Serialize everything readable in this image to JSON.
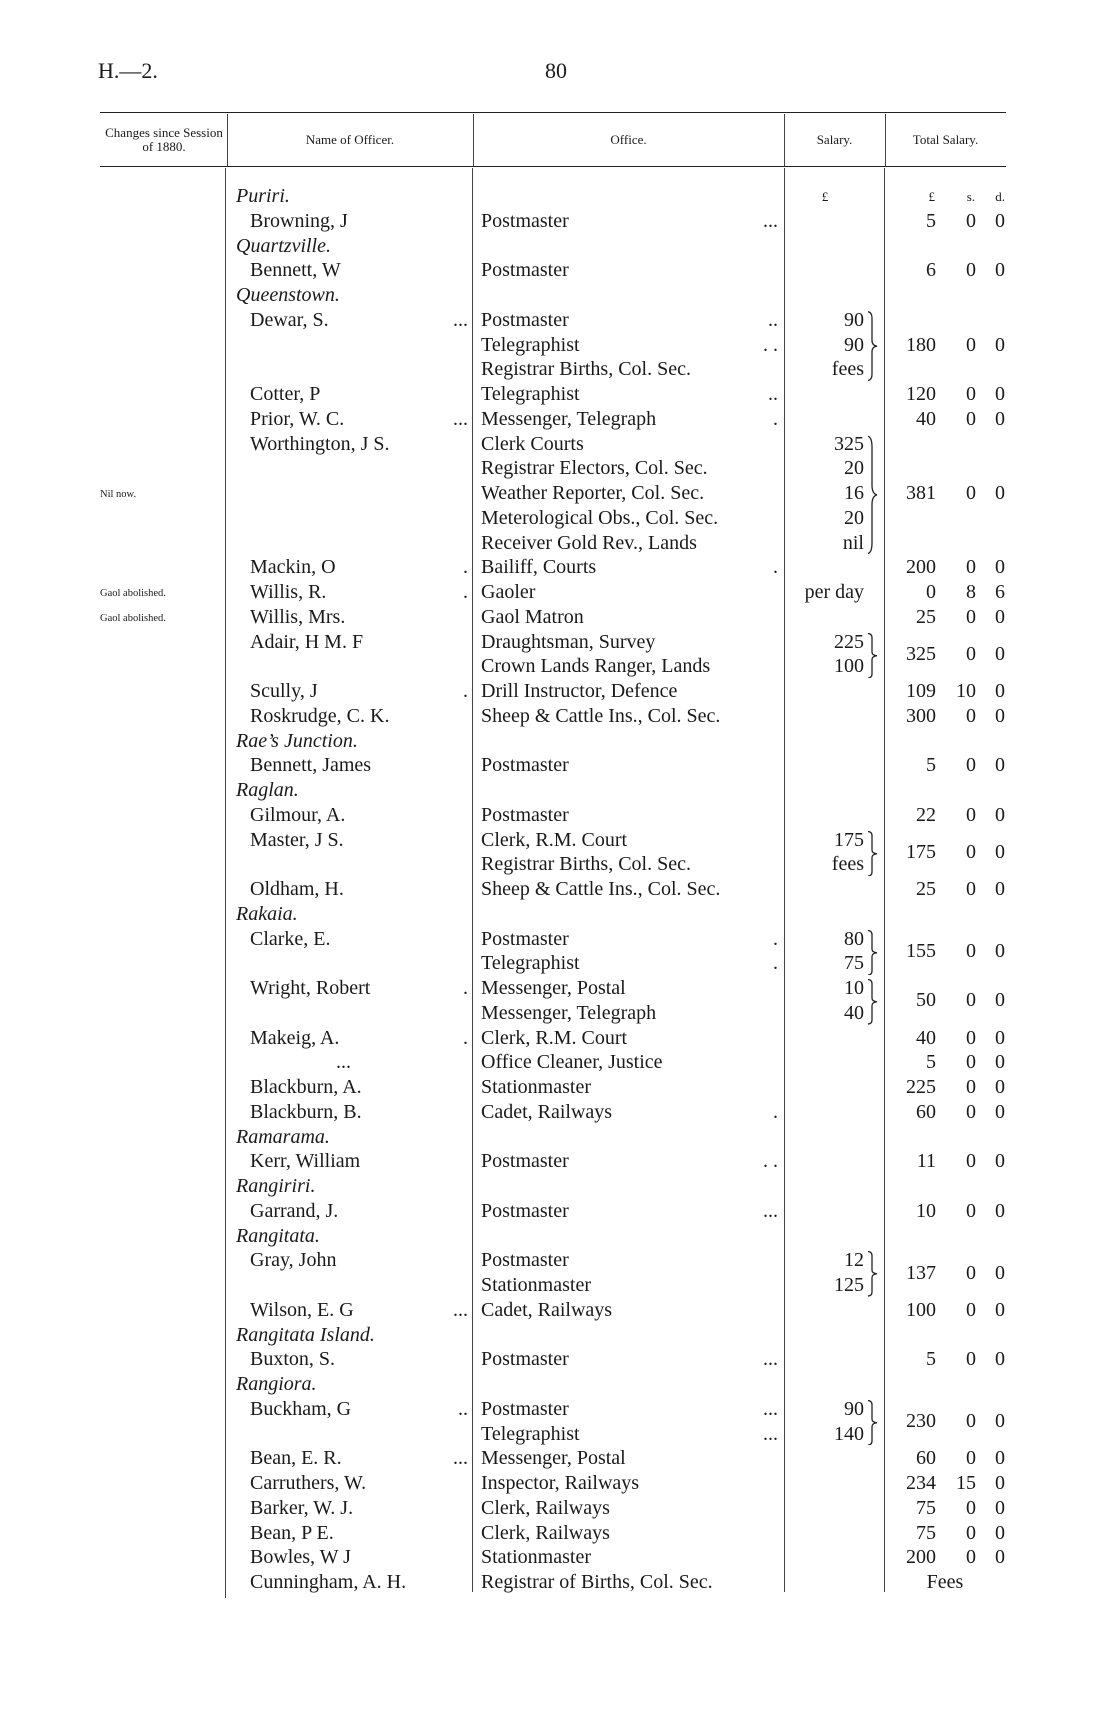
{
  "page": {
    "doc_code": "H.—2.",
    "page_number": "80"
  },
  "header": {
    "changes": "Changes since Session of 1880.",
    "name": "Name of Officer.",
    "office": "Office.",
    "salary": "Salary.",
    "total": "Total Salary."
  },
  "currency_headers": {
    "salary": "£",
    "total_pounds": "£",
    "total_shillings": "s.",
    "total_pence": "d."
  },
  "entries": [
    {
      "place": "Puriri."
    },
    {
      "name": "Browning, J",
      "offices": [
        {
          "office": "Postmaster",
          "dots": "..."
        }
      ],
      "total": [
        "5",
        "0",
        "0"
      ]
    },
    {
      "place": "Quartzville."
    },
    {
      "name": "Bennett, W",
      "offices": [
        {
          "office": "Postmaster"
        }
      ],
      "total": [
        "6",
        "0",
        "0"
      ]
    },
    {
      "place": "Queenstown."
    },
    {
      "name": "Dewar, S.",
      "name_dots": "...",
      "offices": [
        {
          "office": "Postmaster",
          "dots": "..",
          "salary": "90"
        },
        {
          "office": "Telegraphist",
          "dots": ". .",
          "salary": "90"
        },
        {
          "office": "Registrar Births, Col. Sec.",
          "salary": "fees"
        }
      ],
      "total": [
        "180",
        "0",
        "0"
      ]
    },
    {
      "name": "Cotter, P",
      "offices": [
        {
          "office": "Telegraphist",
          "dots": ".."
        }
      ],
      "total": [
        "120",
        "0",
        "0"
      ]
    },
    {
      "name": "Prior, W. C.",
      "name_dots": "...",
      "offices": [
        {
          "office": "Messenger, Telegraph",
          "dots": "."
        }
      ],
      "total": [
        "40",
        "0",
        "0"
      ]
    },
    {
      "name": "Worthington, J  S.",
      "offices": [
        {
          "office": "Clerk Courts",
          "salary": "325"
        },
        {
          "office": "Registrar Electors, Col. Sec.",
          "salary": "20"
        },
        {
          "office": "Weather Reporter, Col. Sec.",
          "salary": "16",
          "note": "Nil now."
        },
        {
          "office": "Meterological Obs., Col. Sec.",
          "salary": "20"
        },
        {
          "office": "Receiver  Gold  Rev., Lands",
          "salary": "nil"
        }
      ],
      "total": [
        "381",
        "0",
        "0"
      ]
    },
    {
      "name": "Mackin, O",
      "name_dots": ".",
      "offices": [
        {
          "office": "Bailiff, Courts",
          "dots": "."
        }
      ],
      "total": [
        "200",
        "0",
        "0"
      ]
    },
    {
      "name": "Willis, R.",
      "name_dots": ".",
      "offices": [
        {
          "office": "Gaoler",
          "salary": "per day",
          "note": "Gaol abolished."
        }
      ],
      "total": [
        "0",
        "8",
        "6"
      ]
    },
    {
      "name": "Willis, Mrs.",
      "offices": [
        {
          "office": "Gaol Matron",
          "note": "Gaol abolished."
        }
      ],
      "total": [
        "25",
        "0",
        "0"
      ]
    },
    {
      "name": "Adair, H  M. F",
      "offices": [
        {
          "office": "Draughtsman, Survey",
          "salary": "225"
        },
        {
          "office": "Crown Lands Ranger, Lands",
          "salary": "100"
        }
      ],
      "total": [
        "325",
        "0",
        "0"
      ]
    },
    {
      "name": "Scully, J",
      "name_dots": ".",
      "offices": [
        {
          "office": "Drill Instructor, Defence"
        }
      ],
      "total": [
        "109",
        "10",
        "0"
      ]
    },
    {
      "name": "Roskrudge, C. K.",
      "offices": [
        {
          "office": "Sheep & Cattle Ins., Col. Sec."
        }
      ],
      "total": [
        "300",
        "0",
        "0"
      ]
    },
    {
      "place": "Rae’s Junction."
    },
    {
      "name": "Bennett, James",
      "offices": [
        {
          "office": "Postmaster"
        }
      ],
      "total": [
        "5",
        "0",
        "0"
      ]
    },
    {
      "place": "Raglan."
    },
    {
      "name": "Gilmour, A.",
      "offices": [
        {
          "office": "Postmaster"
        }
      ],
      "total": [
        "22",
        "0",
        "0"
      ]
    },
    {
      "name": "Master, J  S.",
      "offices": [
        {
          "office": "Clerk, R.M.  Court",
          "salary": "175"
        },
        {
          "office": "Registrar Births, Col. Sec.",
          "salary": "fees"
        }
      ],
      "total": [
        "175",
        "0",
        "0"
      ]
    },
    {
      "name": "Oldham, H.",
      "offices": [
        {
          "office": "Sheep & Cattle Ins., Col. Sec."
        }
      ],
      "total": [
        "25",
        "0",
        "0"
      ]
    },
    {
      "place": "Rakaia."
    },
    {
      "name": "Clarke, E.",
      "offices": [
        {
          "office": "Postmaster",
          "dots": ".",
          "salary": "80"
        },
        {
          "office": "Telegraphist",
          "dots": ".",
          "salary": "75"
        }
      ],
      "total": [
        "155",
        "0",
        "0"
      ]
    },
    {
      "name": "Wright, Robert",
      "name_dots": ".",
      "offices": [
        {
          "office": "Messenger, Postal",
          "salary": "10"
        },
        {
          "office": "Messenger, Telegraph",
          "salary": "40"
        }
      ],
      "total": [
        "50",
        "0",
        "0"
      ]
    },
    {
      "name": "Makeig, A.",
      "name_dots": ".",
      "offices": [
        {
          "office": "Clerk, R.M. Court"
        }
      ],
      "total": [
        "40",
        "0",
        "0"
      ]
    },
    {
      "name": "...",
      "offices": [
        {
          "office": "Office Cleaner, Justice"
        }
      ],
      "total": [
        "5",
        "0",
        "0"
      ]
    },
    {
      "name": "Blackburn, A.",
      "offices": [
        {
          "office": "Stationmaster"
        }
      ],
      "total": [
        "225",
        "0",
        "0"
      ]
    },
    {
      "name": "Blackburn, B.",
      "offices": [
        {
          "office": "Cadet, Railways",
          "dots": "."
        }
      ],
      "total": [
        "60",
        "0",
        "0"
      ]
    },
    {
      "place": "Ramarama."
    },
    {
      "name": "Kerr, William",
      "offices": [
        {
          "office": "Postmaster",
          "dots": ". ."
        }
      ],
      "total": [
        "11",
        "0",
        "0"
      ]
    },
    {
      "place": "Rangiriri."
    },
    {
      "name": "Garrand, J.",
      "offices": [
        {
          "office": "Postmaster",
          "dots": "..."
        }
      ],
      "total": [
        "10",
        "0",
        "0"
      ]
    },
    {
      "place": "Rangitata."
    },
    {
      "name": "Gray, John",
      "offices": [
        {
          "office": "Postmaster",
          "salary": "12"
        },
        {
          "office": "Stationmaster",
          "salary": "125"
        }
      ],
      "total": [
        "137",
        "0",
        "0"
      ]
    },
    {
      "name": "Wilson, E. G",
      "name_dots": "...",
      "offices": [
        {
          "office": "Cadet, Railways"
        }
      ],
      "total": [
        "100",
        "0",
        "0"
      ]
    },
    {
      "place": "Rangitata  Island."
    },
    {
      "name": "Buxton, S.",
      "offices": [
        {
          "office": "Postmaster",
          "dots": "..."
        }
      ],
      "total": [
        "5",
        "0",
        "0"
      ]
    },
    {
      "place": "Rangiora."
    },
    {
      "name": "Buckham, G",
      "name_dots": "..",
      "offices": [
        {
          "office": "Postmaster",
          "dots": "...",
          "salary": "90"
        },
        {
          "office": "Telegraphist",
          "dots": "...",
          "salary": "140"
        }
      ],
      "total": [
        "230",
        "0",
        "0"
      ]
    },
    {
      "name": "Bean, E. R.",
      "name_dots": "...",
      "offices": [
        {
          "office": "Messenger, Postal"
        }
      ],
      "total": [
        "60",
        "0",
        "0"
      ]
    },
    {
      "name": "Carruthers, W.",
      "offices": [
        {
          "office": "Inspector, Railways"
        }
      ],
      "total": [
        "234",
        "15",
        "0"
      ]
    },
    {
      "name": "Barker, W. J.",
      "offices": [
        {
          "office": "Clerk, Railways"
        }
      ],
      "total": [
        "75",
        "0",
        "0"
      ]
    },
    {
      "name": "Bean, P  E.",
      "offices": [
        {
          "office": "Clerk, Railways"
        }
      ],
      "total": [
        "75",
        "0",
        "0"
      ]
    },
    {
      "name": "Bowles, W  J",
      "offices": [
        {
          "office": "Stationmaster"
        }
      ],
      "total": [
        "200",
        "0",
        "0"
      ]
    },
    {
      "name": "Cunningham, A. H.",
      "offices": [
        {
          "office": "Registrar of Births, Col. Sec."
        }
      ],
      "total_text": "Fees"
    }
  ]
}
